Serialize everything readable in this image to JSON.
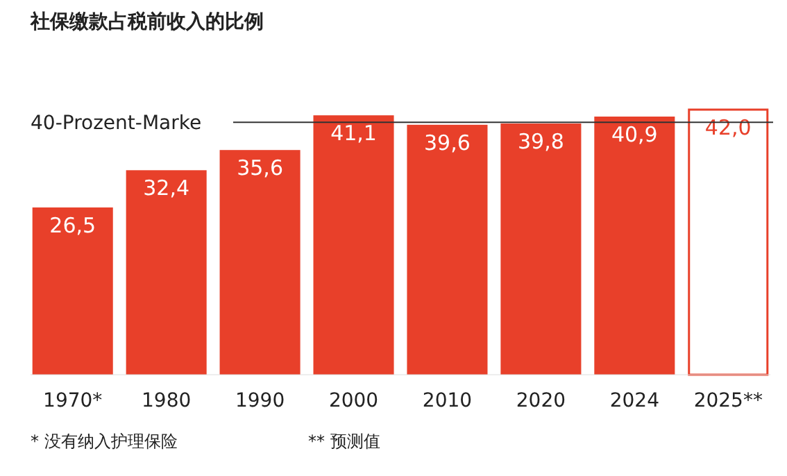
{
  "chart_data": {
    "type": "bar",
    "title": "社保缴款占税前收入的比例",
    "categories": [
      "1970*",
      "1980",
      "1990",
      "2000",
      "2010",
      "2020",
      "2024",
      "2025**"
    ],
    "values": [
      26.5,
      32.4,
      35.6,
      41.1,
      39.6,
      39.8,
      40.9,
      42.0
    ],
    "value_labels": [
      "26,5",
      "32,4",
      "35,6",
      "41,1",
      "39,6",
      "39,8",
      "40,9",
      "42,0"
    ],
    "color": "#e8402a",
    "colors": [
      "#e8402a",
      "#e8402a",
      "#e8402a",
      "#e8402a",
      "#e8402a",
      "#e8402a",
      "#e8402a",
      "#ffffff"
    ],
    "ref_lines": [
      {
        "axis": "y",
        "value": 40,
        "label": "40-Prozent-Marke",
        "color": "#333333"
      }
    ],
    "annotations": [
      "* 没有纳入护理保险",
      "** 预测值"
    ]
  }
}
